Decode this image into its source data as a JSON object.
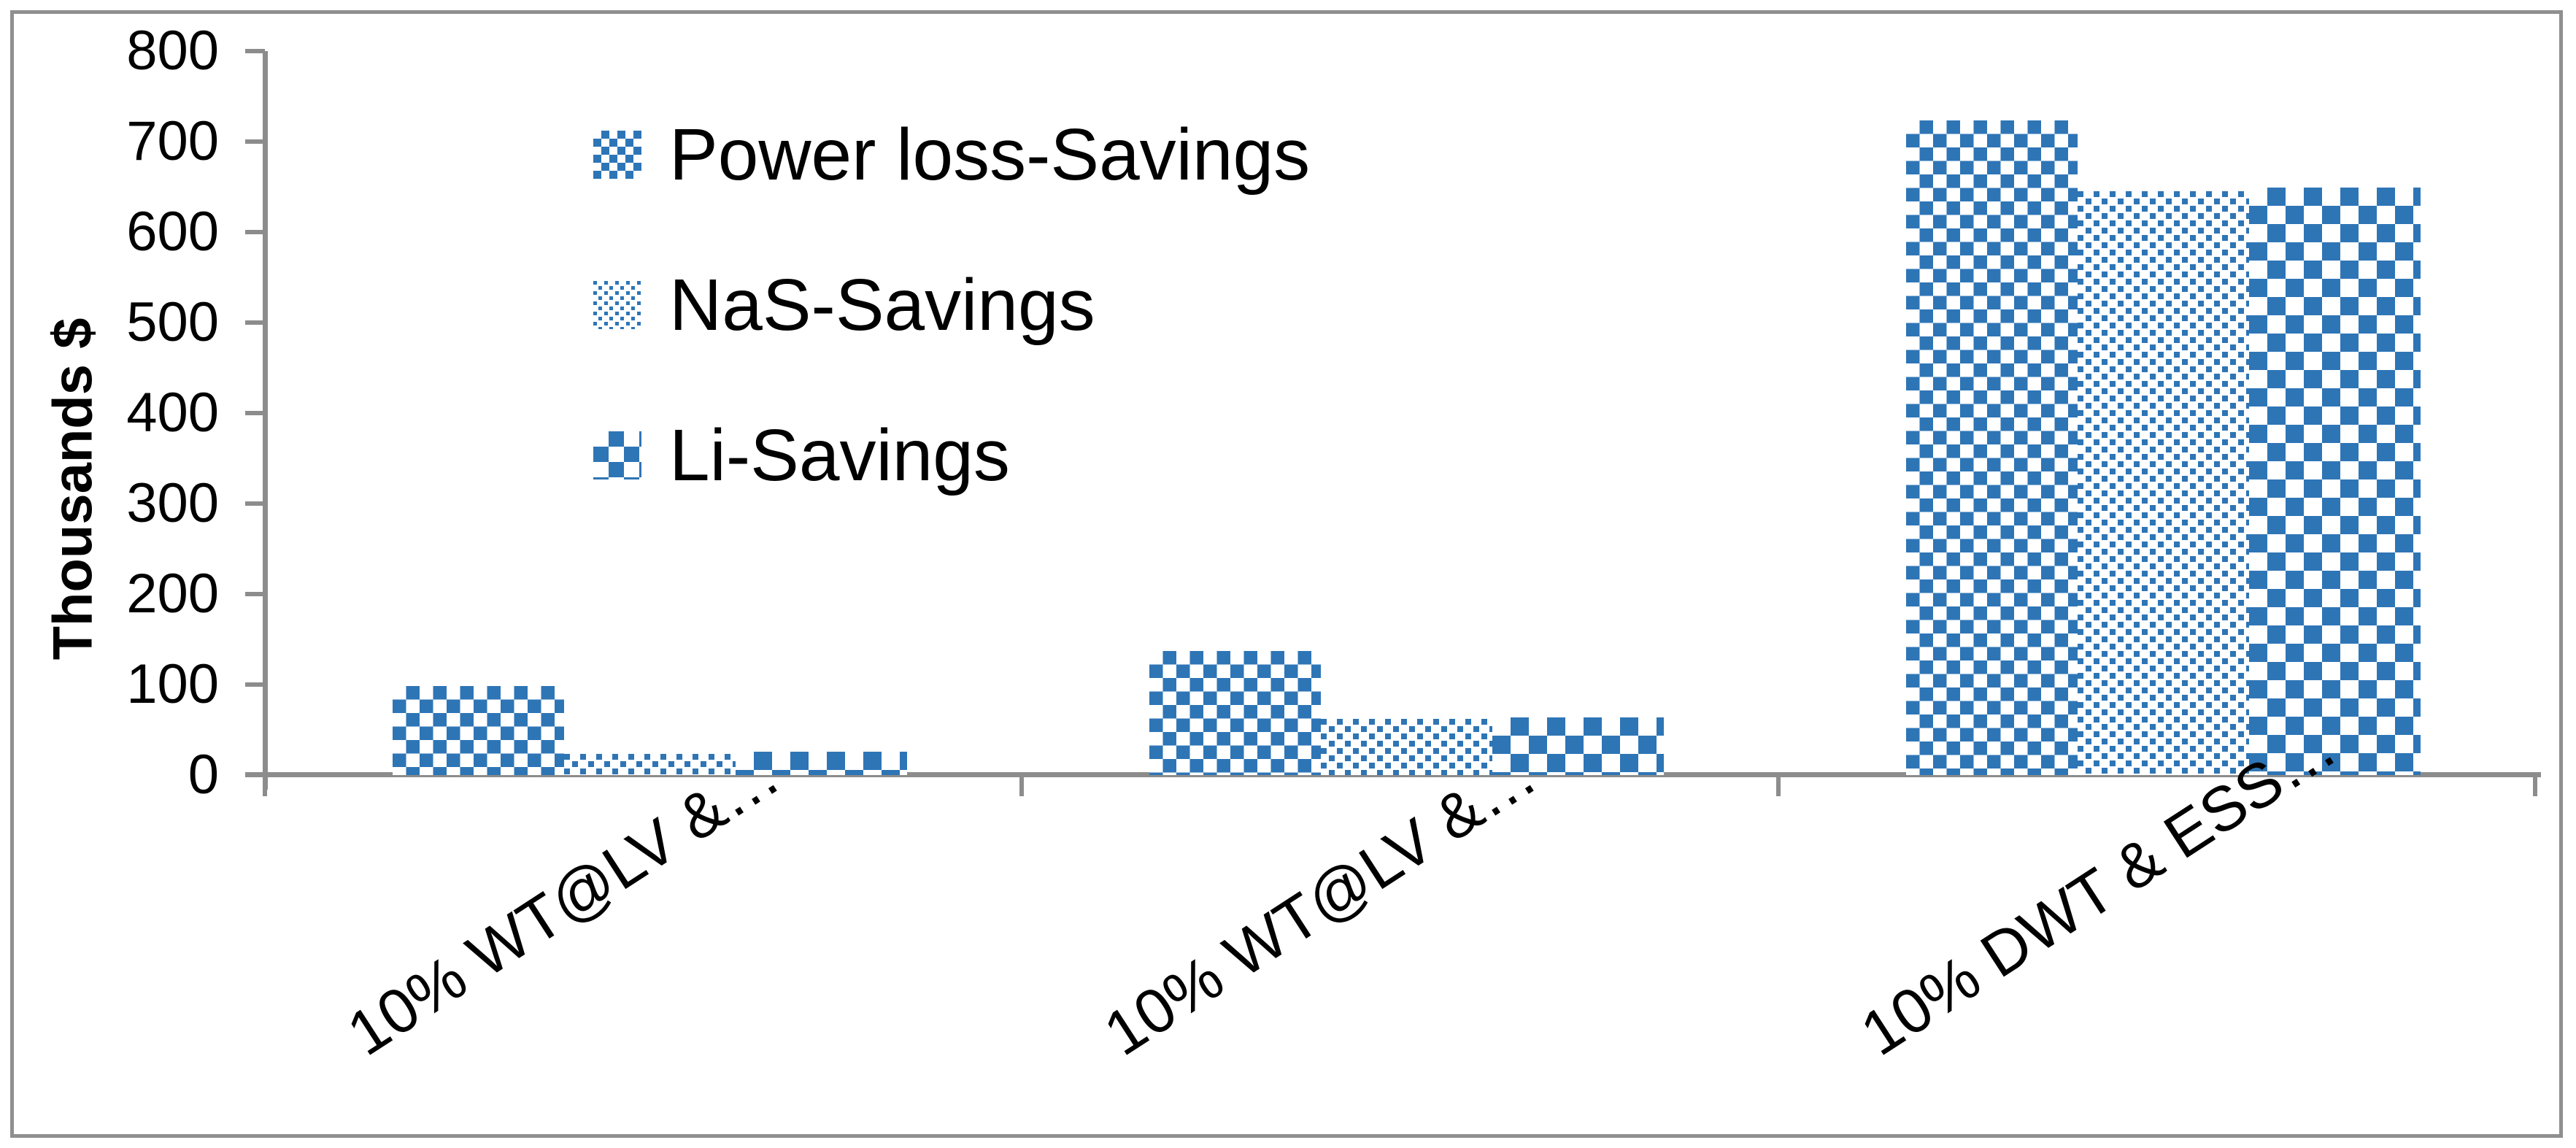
{
  "chart_data": {
    "type": "bar",
    "title": "",
    "xlabel": "",
    "ylabel": "Thousands $",
    "ylim": [
      0,
      800
    ],
    "ytick_step": 100,
    "yticks": [
      800,
      700,
      600,
      500,
      400,
      300,
      200,
      100,
      0
    ],
    "grid": false,
    "legend_position": "upper-left-inside",
    "categories": [
      "10% WT@LV &…",
      "10% WT@LV &…",
      "10% DWT & ESS…"
    ],
    "series": [
      {
        "name": "Power loss-Savings",
        "pattern": "medium-checker",
        "values": [
          98,
          137,
          723
        ]
      },
      {
        "name": "NaS-Savings",
        "pattern": "fine-dots",
        "values": [
          23,
          62,
          645
        ]
      },
      {
        "name": "Li-Savings",
        "pattern": "large-checker",
        "values": [
          26,
          64,
          649
        ]
      }
    ]
  },
  "colors": {
    "bar_blue": "#2E75B6",
    "axis_gray": "#8C8C8C",
    "frame_gray": "#8F8F8F",
    "text": "#000000"
  }
}
